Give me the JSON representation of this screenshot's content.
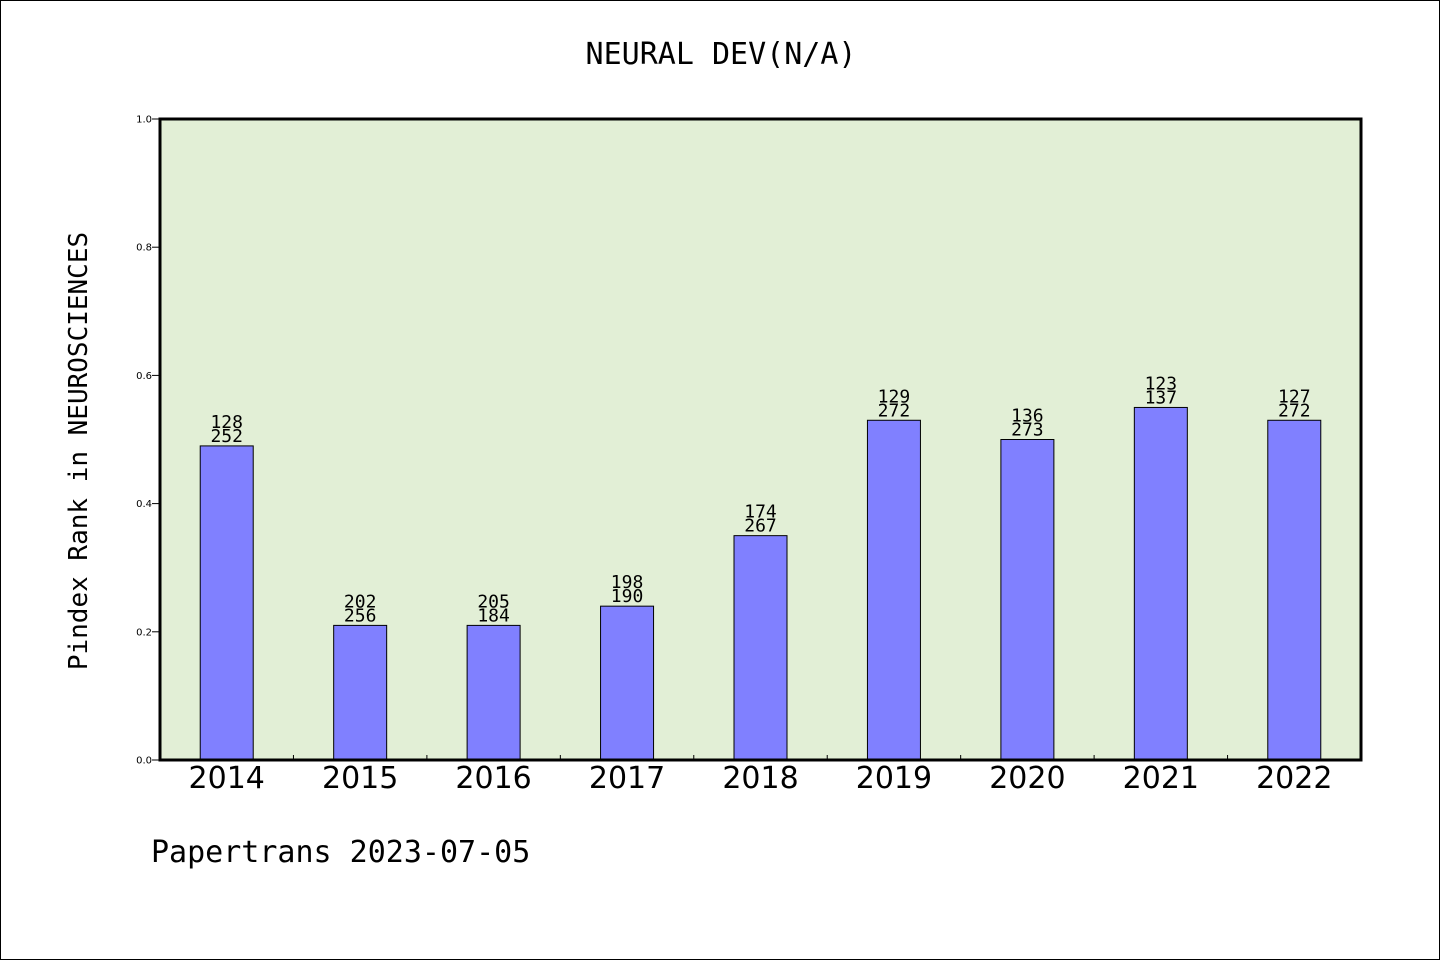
{
  "title": "NEURAL DEV(N/A)",
  "ylabel": "Pindex Rank in NEUROSCIENCES",
  "footer": "Papertrans 2023-07-05",
  "colors": {
    "plot_bg": "#e2efd6",
    "bar": "#8080ff",
    "bar_edge": "#000000"
  },
  "chart_data": {
    "type": "bar",
    "title": "NEURAL DEV(N/A)",
    "xlabel": "",
    "ylabel": "Pindex Rank in NEUROSCIENCES",
    "categories": [
      "2014",
      "2015",
      "2016",
      "2017",
      "2018",
      "2019",
      "2020",
      "2021",
      "2022"
    ],
    "values": [
      0.49,
      0.21,
      0.21,
      0.24,
      0.35,
      0.53,
      0.5,
      0.55,
      0.53
    ],
    "labels_top": [
      "128",
      "202",
      "205",
      "198",
      "174",
      "129",
      "136",
      "123",
      "127"
    ],
    "labels_bottom": [
      "252",
      "256",
      "184",
      "190",
      "267",
      "272",
      "273",
      "137",
      "272"
    ],
    "ylim": [
      0,
      1.0
    ],
    "yticks": [
      "0.0",
      "0.2",
      "0.4",
      "0.6",
      "0.8",
      "1.0"
    ],
    "grid": false
  }
}
